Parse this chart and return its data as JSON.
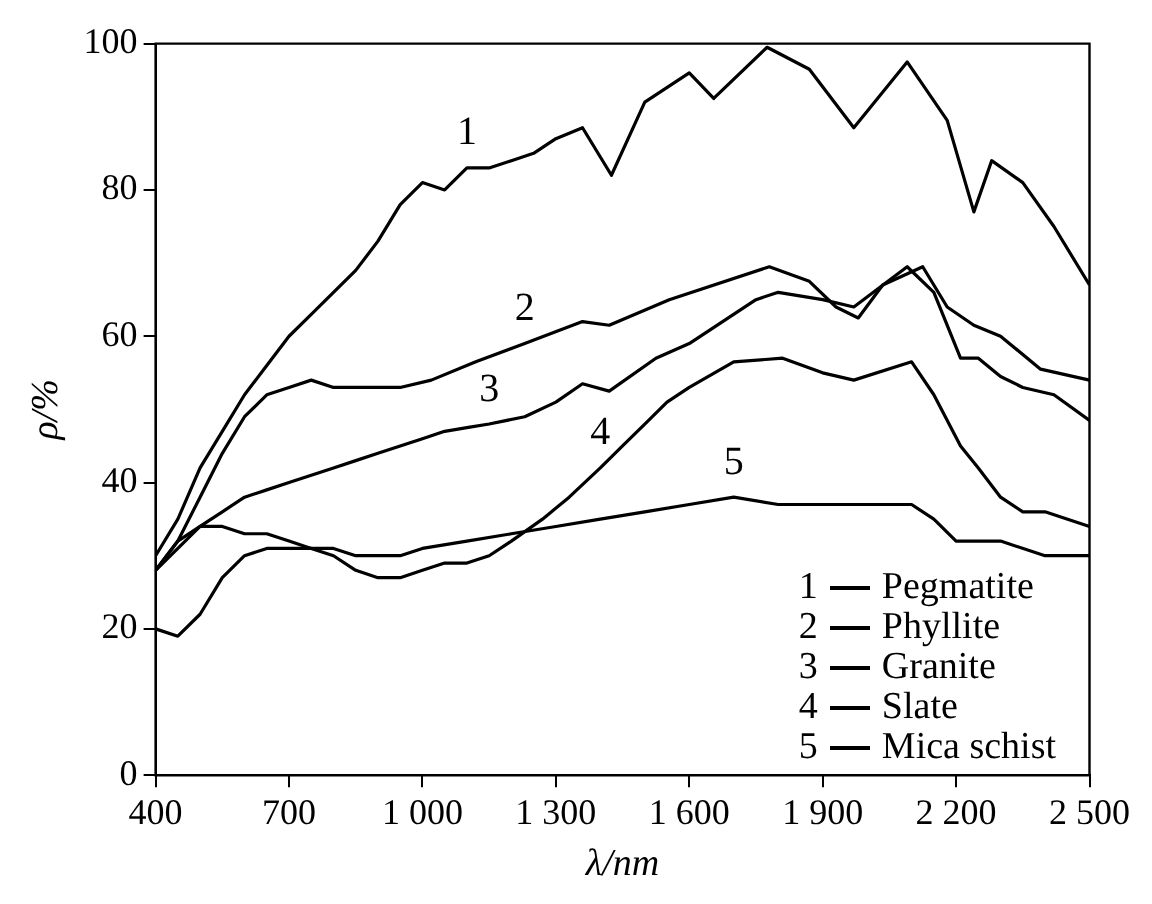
{
  "chart_data": {
    "type": "line",
    "xlabel": "λ/nm",
    "ylabel": "ρ/%",
    "xlim": [
      400,
      2500
    ],
    "xticks": [
      400,
      700,
      {
        "value": 1000,
        "label": "1 000"
      },
      {
        "value": 1300,
        "label": "1 300"
      },
      {
        "value": 1600,
        "label": "1 600"
      },
      {
        "value": 1900,
        "label": "1 900"
      },
      {
        "value": 2200,
        "label": "2 200"
      },
      {
        "value": 2500,
        "label": "2 500"
      }
    ],
    "ylim": [
      0,
      100
    ],
    "yticks": [
      0,
      20,
      40,
      60,
      80,
      100
    ],
    "grid": false,
    "legend": "bottom right",
    "line_style": "solid",
    "marker": "none",
    "series": [
      {
        "name": "Pegmatite",
        "color": "#000000",
        "x": [
          400,
          450,
          500,
          550,
          600,
          650,
          700,
          750,
          800,
          850,
          900,
          950,
          1000,
          1050,
          1100,
          1150,
          1200,
          1250,
          1300,
          1360,
          1425,
          1500,
          1600,
          1655,
          1775,
          1870,
          1970,
          2090,
          2180,
          2240,
          2280,
          2350,
          2420,
          2500
        ],
        "values": [
          30,
          35,
          42,
          47,
          52,
          56,
          60,
          63,
          66,
          69,
          73,
          78,
          81,
          80,
          83,
          83,
          84,
          85,
          87,
          88.5,
          82,
          92,
          96,
          92.5,
          99.5,
          96.5,
          88.5,
          97.5,
          89.5,
          77,
          84,
          81,
          75,
          67
        ]
      },
      {
        "name": "Phyllite",
        "color": "#000000",
        "x": [
          400,
          450,
          500,
          550,
          600,
          650,
          700,
          750,
          800,
          850,
          900,
          950,
          1020,
          1120,
          1230,
          1360,
          1420,
          1555,
          1780,
          1870,
          1930,
          1980,
          2035,
          2125,
          2180,
          2240,
          2300,
          2390,
          2500
        ],
        "values": [
          28,
          32,
          38,
          44,
          49,
          52,
          53,
          54,
          53,
          53,
          53,
          53,
          54,
          56.5,
          59,
          62,
          61.5,
          65,
          69.5,
          67.5,
          64,
          62.5,
          67,
          69.5,
          64,
          61.5,
          60,
          55.5,
          54
        ]
      },
      {
        "name": "Granite",
        "color": "#000000",
        "x": [
          400,
          450,
          500,
          550,
          600,
          650,
          700,
          750,
          800,
          850,
          900,
          950,
          1000,
          1050,
          1100,
          1150,
          1230,
          1300,
          1360,
          1420,
          1525,
          1600,
          1750,
          1800,
          1900,
          1970,
          2090,
          2150,
          2210,
          2250,
          2300,
          2350,
          2420,
          2500
        ],
        "values": [
          28,
          31,
          34,
          36,
          38,
          39,
          40,
          41,
          42,
          43,
          44,
          45,
          46,
          47,
          47.5,
          48,
          49,
          51,
          53.5,
          52.5,
          57,
          59,
          65,
          66,
          65,
          64,
          69.5,
          66,
          57,
          57,
          54.5,
          53,
          52,
          48.5
        ]
      },
      {
        "name": "Slate",
        "color": "#000000",
        "x": [
          400,
          450,
          500,
          550,
          600,
          650,
          700,
          750,
          800,
          850,
          900,
          950,
          1000,
          1050,
          1100,
          1150,
          1200,
          1270,
          1330,
          1400,
          1450,
          1500,
          1550,
          1600,
          1700,
          1810,
          1900,
          1970,
          2100,
          2150,
          2210,
          2250,
          2300,
          2350,
          2400,
          2500
        ],
        "values": [
          20,
          19,
          22,
          27,
          30,
          31,
          31,
          31,
          30,
          28,
          27,
          27,
          28,
          29,
          29,
          30,
          32,
          35,
          38,
          42,
          45,
          48,
          51,
          53,
          56.5,
          57,
          55,
          54,
          56.5,
          52,
          45,
          42,
          38,
          36,
          36,
          34
        ]
      },
      {
        "name": "Mica schist",
        "color": "#000000",
        "x": [
          400,
          450,
          500,
          550,
          600,
          650,
          700,
          750,
          800,
          850,
          900,
          950,
          1000,
          1100,
          1200,
          1300,
          1400,
          1500,
          1600,
          1700,
          1800,
          1900,
          2000,
          2100,
          2150,
          2200,
          2300,
          2400,
          2500
        ],
        "values": [
          28,
          32,
          34,
          34,
          33,
          33,
          32,
          31,
          31,
          30,
          30,
          30,
          31,
          32,
          33,
          34,
          35,
          36,
          37,
          38,
          37,
          37,
          37,
          37,
          35,
          32,
          32,
          30,
          30
        ]
      }
    ],
    "annotations": [
      {
        "text": "1",
        "x": 1100,
        "y": 83
      },
      {
        "text": "2",
        "x": 1230,
        "y": 59
      },
      {
        "text": "3",
        "x": 1150,
        "y": 48
      },
      {
        "text": "4",
        "x": 1400,
        "y": 42
      },
      {
        "text": "5",
        "x": 1700,
        "y": 38
      }
    ]
  }
}
